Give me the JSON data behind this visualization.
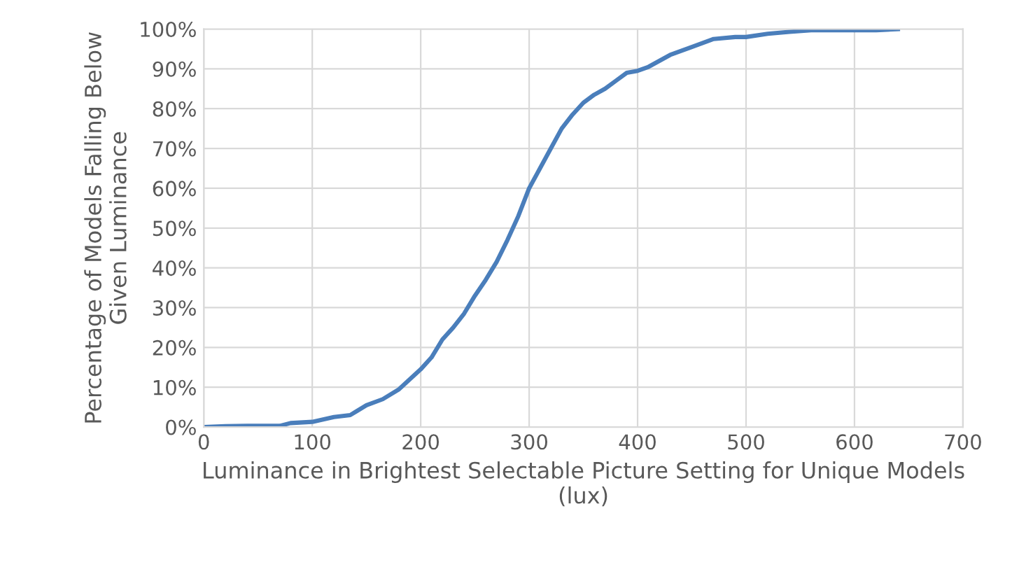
{
  "chart_data": {
    "type": "line",
    "xlabel": "Luminance in Brightest Selectable Picture Setting for Unique Models\n(lux)",
    "ylabel": "Percentage of Models Falling Below\nGiven Luminance",
    "x": [
      0,
      20,
      40,
      60,
      70,
      80,
      100,
      120,
      135,
      150,
      165,
      180,
      190,
      200,
      210,
      220,
      230,
      240,
      250,
      260,
      270,
      280,
      290,
      300,
      310,
      320,
      330,
      340,
      350,
      360,
      370,
      380,
      390,
      400,
      410,
      420,
      430,
      450,
      470,
      490,
      500,
      520,
      540,
      560,
      600,
      620,
      640
    ],
    "series": [
      {
        "color": "#4a7ebb",
        "values": [
          0,
          0.2,
          0.3,
          0.3,
          0.3,
          1,
          1.3,
          2.5,
          3,
          5.5,
          7,
          9.5,
          12,
          14.5,
          17.5,
          22,
          25,
          28.5,
          33,
          37,
          41.5,
          47,
          53,
          60,
          65,
          70,
          75,
          78.5,
          81.5,
          83.5,
          85,
          87,
          89,
          89.5,
          90.5,
          92,
          93.5,
          95.5,
          97.5,
          98,
          98,
          98.8,
          99.3,
          99.7,
          99.7,
          99.7,
          100
        ]
      }
    ],
    "xlim": [
      0,
      700
    ],
    "xticks": [
      0,
      100,
      200,
      300,
      400,
      500,
      600,
      700
    ],
    "ylim": [
      0,
      100
    ],
    "yticks": [
      {
        "value": 0,
        "label": "0%"
      },
      {
        "value": 10,
        "label": "10%"
      },
      {
        "value": 20,
        "label": "20%"
      },
      {
        "value": 30,
        "label": "30%"
      },
      {
        "value": 40,
        "label": "40%"
      },
      {
        "value": 50,
        "label": "50%"
      },
      {
        "value": 60,
        "label": "60%"
      },
      {
        "value": 70,
        "label": "70%"
      },
      {
        "value": 80,
        "label": "80%"
      },
      {
        "value": 90,
        "label": "90%"
      },
      {
        "value": 100,
        "label": "100%"
      }
    ],
    "grid": true,
    "legend": false,
    "marker": "none",
    "line_style": "solid"
  }
}
